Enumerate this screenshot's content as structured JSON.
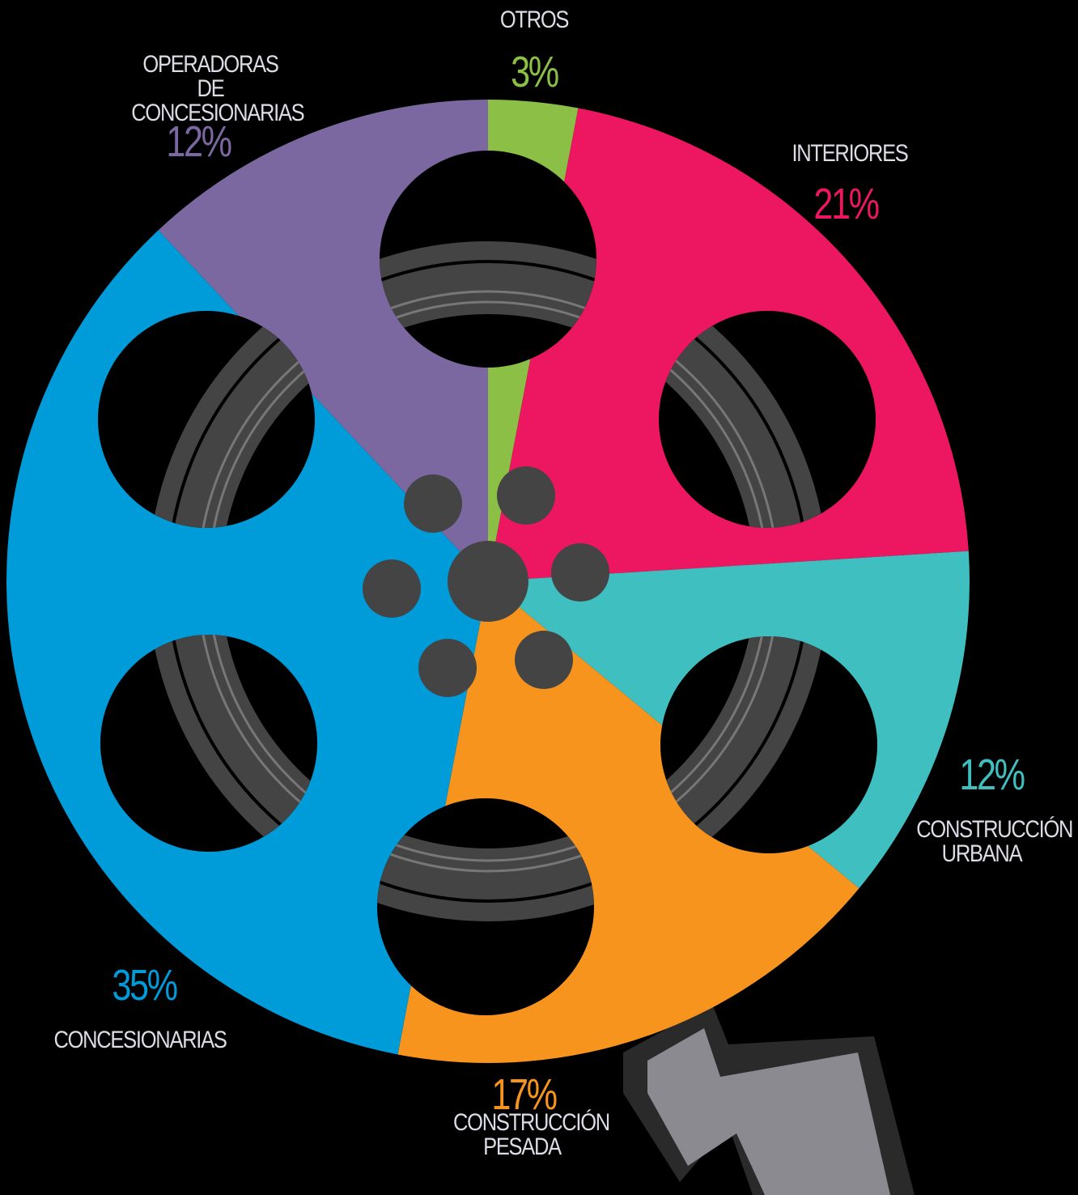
{
  "chart_data": {
    "type": "pie",
    "categories": [
      "OTROS",
      "INTERIORES",
      "CONSTRUCCIÓN URBANA",
      "CONSTRUCCIÓN PESADA",
      "CONCESIONARIAS",
      "OPERADORAS DE CONCESIONARIAS"
    ],
    "values": [
      3,
      21,
      12,
      17,
      35,
      12
    ],
    "value_labels": [
      "3%",
      "21%",
      "12%",
      "17%",
      "35%",
      "12%"
    ],
    "colors": [
      "#8bbf45",
      "#ed1660",
      "#40bfc1",
      "#f7941d",
      "#009bd9",
      "#7b68a0"
    ]
  }
}
